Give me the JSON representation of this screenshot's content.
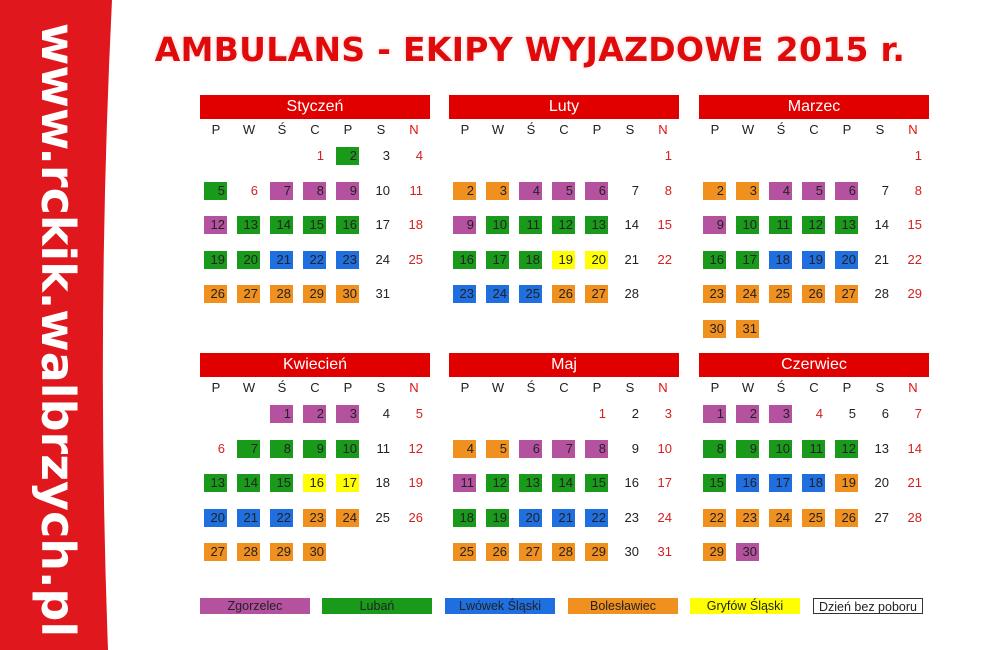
{
  "sidebar": {
    "url": "www.rckik.walbrzych.pl",
    "background_color": "#e0181e"
  },
  "title": "AMBULANS - EKIPY WYJAZDOWE 2015 r.",
  "weekdays": [
    "P",
    "W",
    "Ś",
    "C",
    "P",
    "S",
    "N"
  ],
  "colors": {
    "z": "#b5529f",
    "l": "#1a9a1a",
    "w": "#1f6fe0",
    "b": "#f0901f",
    "g": "#ffff00",
    "header": "#e00000"
  },
  "months": [
    {
      "name": "Styczeń",
      "start_weekday": 3,
      "days": 31,
      "codes": [
        "h",
        "l",
        "-",
        "-",
        "l",
        "h",
        "z",
        "z",
        "z",
        "-",
        "-",
        "z",
        "l",
        "l",
        "l",
        "l",
        "-",
        "-",
        "l",
        "l",
        "w",
        "w",
        "w",
        "-",
        "-",
        "b",
        "b",
        "b",
        "b",
        "b",
        "-"
      ]
    },
    {
      "name": "Luty",
      "start_weekday": 6,
      "days": 28,
      "codes": [
        "-",
        "b",
        "b",
        "z",
        "z",
        "z",
        "-",
        "-",
        "z",
        "l",
        "l",
        "l",
        "l",
        "-",
        "-",
        "l",
        "l",
        "l",
        "g",
        "g",
        "-",
        "-",
        "w",
        "w",
        "w",
        "b",
        "b",
        "-"
      ]
    },
    {
      "name": "Marzec",
      "start_weekday": 6,
      "days": 31,
      "codes": [
        "-",
        "b",
        "b",
        "z",
        "z",
        "z",
        "-",
        "-",
        "z",
        "l",
        "l",
        "l",
        "l",
        "-",
        "-",
        "l",
        "l",
        "w",
        "w",
        "w",
        "-",
        "-",
        "b",
        "b",
        "b",
        "b",
        "b",
        "-",
        "-",
        "b",
        "b"
      ]
    },
    {
      "name": "Kwiecień",
      "start_weekday": 2,
      "days": 30,
      "codes": [
        "z",
        "z",
        "z",
        "-",
        "-",
        "h",
        "l",
        "l",
        "l",
        "l",
        "-",
        "-",
        "l",
        "l",
        "l",
        "g",
        "g",
        "-",
        "-",
        "w",
        "w",
        "w",
        "b",
        "b",
        "-",
        "-",
        "b",
        "b",
        "b",
        "b"
      ]
    },
    {
      "name": "Maj",
      "start_weekday": 4,
      "days": 31,
      "codes": [
        "h",
        "-",
        "-",
        "b",
        "b",
        "z",
        "z",
        "z",
        "-",
        "-",
        "z",
        "l",
        "l",
        "l",
        "l",
        "-",
        "-",
        "l",
        "l",
        "w",
        "w",
        "w",
        "-",
        "-",
        "b",
        "b",
        "b",
        "b",
        "b",
        "-",
        "-"
      ]
    },
    {
      "name": "Czerwiec",
      "start_weekday": 0,
      "days": 30,
      "codes": [
        "z",
        "z",
        "z",
        "h",
        "-",
        "-",
        "-",
        "l",
        "l",
        "l",
        "l",
        "l",
        "-",
        "-",
        "l",
        "w",
        "w",
        "w",
        "b",
        "-",
        "-",
        "b",
        "b",
        "b",
        "b",
        "b",
        "-",
        "-",
        "b",
        "z"
      ]
    }
  ],
  "legend": [
    {
      "code": "z",
      "label": "Zgorzelec"
    },
    {
      "code": "l",
      "label": "Lubań"
    },
    {
      "code": "w",
      "label": "Lwówek Śląski"
    },
    {
      "code": "b",
      "label": "Bolesławiec"
    },
    {
      "code": "g",
      "label": "Gryfów Śląski"
    },
    {
      "code": "-",
      "label": "Dzień bez poboru"
    }
  ]
}
